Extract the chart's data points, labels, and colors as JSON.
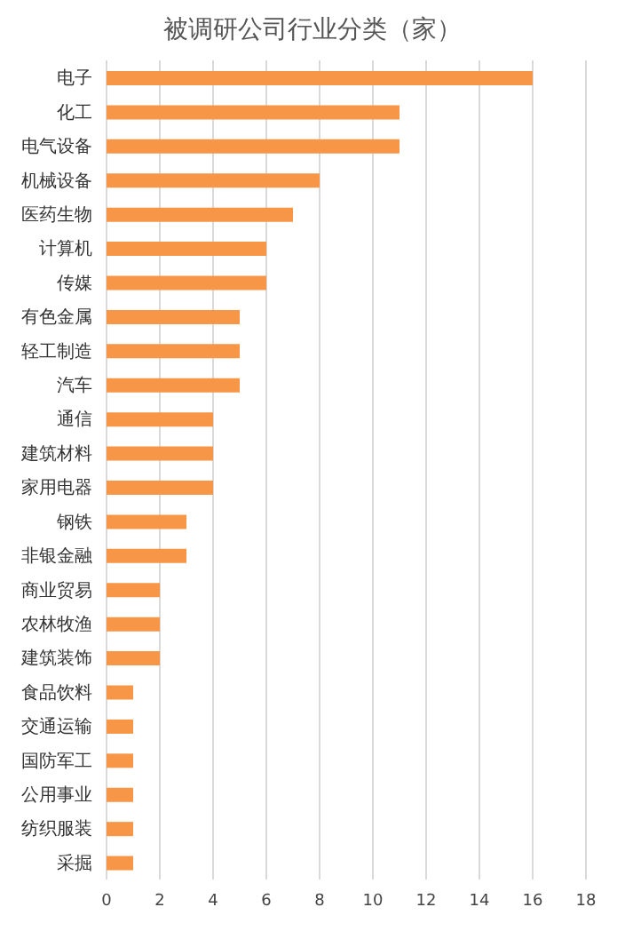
{
  "chart_data": {
    "type": "bar",
    "orientation": "horizontal",
    "title": "被调研公司行业分类（家）",
    "categories": [
      "电子",
      "化工",
      "电气设备",
      "机械设备",
      "医药生物",
      "计算机",
      "传媒",
      "有色金属",
      "轻工制造",
      "汽车",
      "通信",
      "建筑材料",
      "家用电器",
      "钢铁",
      "非银金融",
      "商业贸易",
      "农林牧渔",
      "建筑装饰",
      "食品饮料",
      "交通运输",
      "国防军工",
      "公用事业",
      "纺织服装",
      "采掘"
    ],
    "values": [
      16,
      11,
      11,
      8,
      7,
      6,
      6,
      5,
      5,
      5,
      4,
      4,
      4,
      3,
      3,
      2,
      2,
      2,
      1,
      1,
      1,
      1,
      1,
      1
    ],
    "color": "#f79646",
    "xlim": [
      0,
      18
    ],
    "xticks": [
      0,
      2,
      4,
      6,
      8,
      10,
      12,
      14,
      16,
      18
    ],
    "grid": "x"
  }
}
